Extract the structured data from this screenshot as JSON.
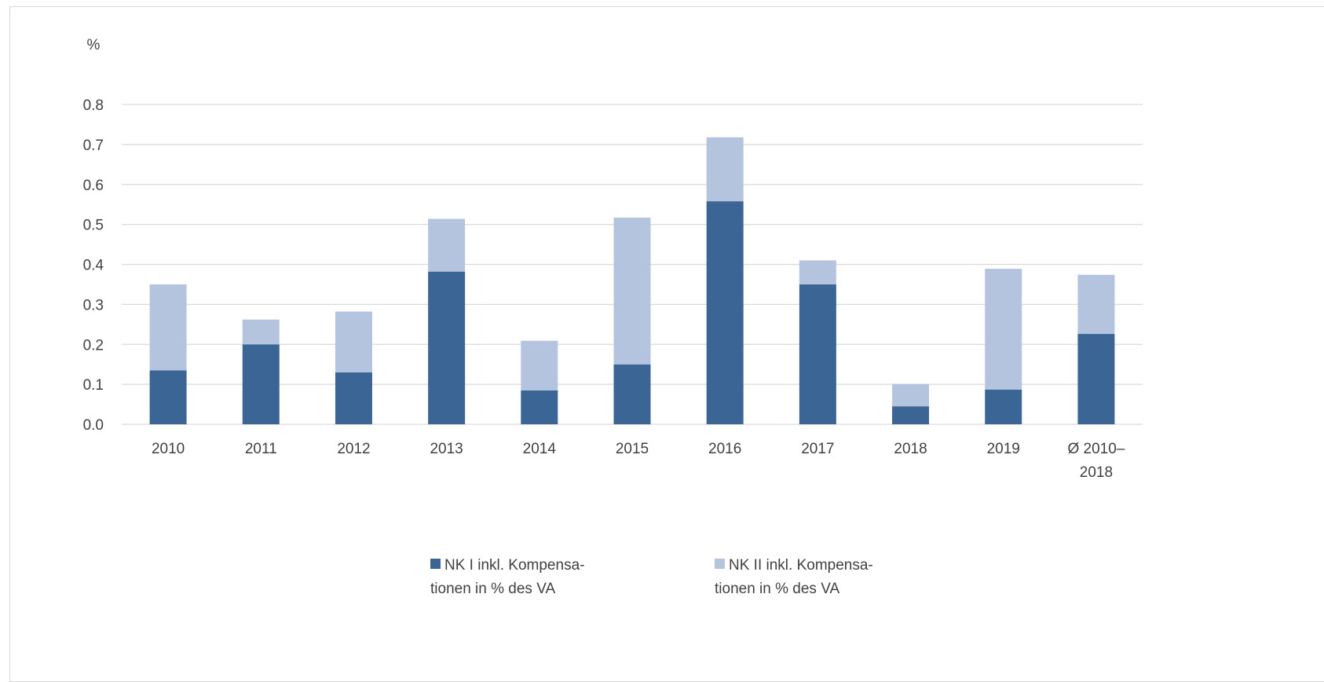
{
  "chart_data": {
    "type": "bar",
    "stacked": true,
    "ylabel": "%",
    "ylim": [
      0,
      0.8
    ],
    "yticks": [
      "0.0",
      "0.1",
      "0.2",
      "0.3",
      "0.4",
      "0.5",
      "0.6",
      "0.7",
      "0.8"
    ],
    "categories": [
      "2010",
      "2011",
      "2012",
      "2013",
      "2014",
      "2015",
      "2016",
      "2017",
      "2018",
      "2019",
      "Ø 2010–2018"
    ],
    "category_label_lines": [
      [
        "2010"
      ],
      [
        "2011"
      ],
      [
        "2012"
      ],
      [
        "2013"
      ],
      [
        "2014"
      ],
      [
        "2015"
      ],
      [
        "2016"
      ],
      [
        "2017"
      ],
      [
        "2018"
      ],
      [
        "2019"
      ],
      [
        "Ø 2010–",
        "2018"
      ]
    ],
    "series": [
      {
        "name": "NK I inkl. Kompensationen in % des VA",
        "legend_lines": [
          "NK I inkl. Kompensa-",
          "tionen in % des VA"
        ],
        "color": "#3b6595",
        "values": [
          0.135,
          0.2,
          0.13,
          0.382,
          0.085,
          0.15,
          0.558,
          0.35,
          0.045,
          0.087,
          0.226
        ]
      },
      {
        "name": "NK II inkl. Kompensationen in % des VA",
        "legend_lines": [
          "NK II inkl. Kompensa-",
          "tionen in % des VA"
        ],
        "color": "#b4c4df",
        "values": [
          0.215,
          0.062,
          0.152,
          0.132,
          0.124,
          0.367,
          0.16,
          0.06,
          0.056,
          0.302,
          0.148
        ]
      }
    ],
    "grid": true,
    "legend_position": "bottom"
  }
}
